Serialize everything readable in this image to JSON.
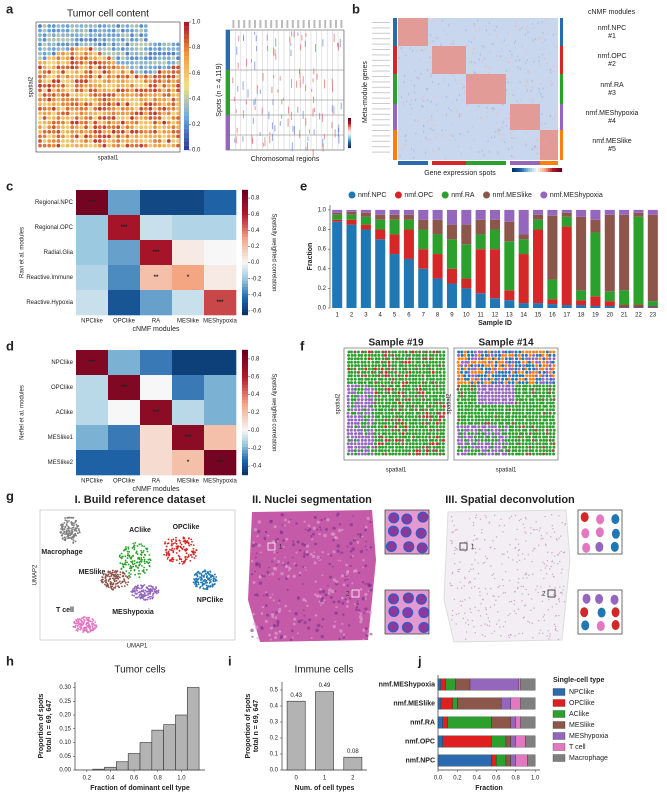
{
  "panel_labels": [
    "a",
    "b",
    "c",
    "d",
    "e",
    "f",
    "g",
    "h",
    "i",
    "j"
  ],
  "panel_a": {
    "title": "Tumor cell content",
    "xlabel": "spatial1",
    "ylabel": "spatial2",
    "colorbar_ticks": [
      {
        "value": 0,
        "label": "0.0"
      },
      0.2,
      0.4,
      0.6,
      0.8,
      {
        "value": 1,
        "label": "1.0"
      }
    ],
    "cnv_ylabel": "Spots (n = 4,119)",
    "cnv_xlabel": "Chromosomal regions"
  },
  "panel_b": {
    "ylabel": "Meta-module genes",
    "legend_title": "cNMF modules",
    "modules": [
      {
        "name": "nmf.NPC",
        "number": "#1"
      },
      {
        "name": "nmf.OPC",
        "number": "#2"
      },
      {
        "name": "nmf.RA",
        "number": "#3"
      },
      {
        "name": "nmf.MEShypoxia",
        "number": "#4"
      },
      {
        "name": "nmf.MESlike",
        "number": "#5"
      }
    ],
    "xlabel": "Gene expression spots"
  },
  "panel_f": {
    "titles": [
      "Sample #19",
      "Sample #14"
    ],
    "xlabel": "spatial1",
    "ylabel": "spatial2"
  },
  "panel_g": {
    "sections": [
      "I. Build reference dataset",
      "II. Nuclei segmentation",
      "III. Spatial deconvolution"
    ],
    "clusters": [
      "Macrophage",
      "MESlike",
      "AClike",
      "OPClike",
      "NPClike",
      "MEShypoxia",
      "T cell"
    ],
    "xlabel": "UMAP1",
    "ylabel": "UMAP2",
    "regions": [
      "1",
      "2"
    ]
  },
  "chart_data": [
    {
      "type": "heatmap",
      "colormap": "RdBu_r",
      "rows": [
        "Regional.NPC",
        "Regional.OPC",
        "Radial.Glia",
        "Reactive.Immune",
        "Reactive.Hypoxia"
      ],
      "columns": [
        "NPClike",
        "OPClike",
        "RA",
        "MESlike",
        "MEShypoxia"
      ],
      "values": [
        [
          0.85,
          -0.3,
          -0.55,
          -0.55,
          -0.45
        ],
        [
          -0.2,
          0.65,
          -0.1,
          -0.15,
          -0.15
        ],
        [
          -0.2,
          -0.3,
          0.65,
          0.05,
          0.0
        ],
        [
          -0.15,
          -0.35,
          0.2,
          0.3,
          0.05
        ],
        [
          -0.1,
          -0.5,
          -0.3,
          -0.1,
          0.5
        ]
      ],
      "significance": [
        [
          "***",
          null,
          null,
          null,
          null
        ],
        [
          null,
          "***",
          null,
          null,
          null
        ],
        [
          null,
          null,
          "***",
          null,
          null
        ],
        [
          null,
          null,
          "**",
          "*",
          null
        ],
        [
          null,
          null,
          null,
          null,
          "***"
        ]
      ],
      "xlabel": "cNMF modules",
      "ylabel": "Ravi et al. modules",
      "colorbar_label": "Spatially weighted correlation",
      "zlim": [
        -0.65,
        0.9
      ],
      "zticks": [
        -0.6,
        -0.4,
        -0.2,
        {
          "value": 0,
          "label": "0.0"
        },
        0.2,
        0.4,
        0.6,
        0.8
      ]
    },
    {
      "type": "heatmap",
      "colormap": "RdBu_r",
      "rows": [
        "NPClike",
        "OPClike",
        "AClike",
        "MESlike1",
        "MESlike2"
      ],
      "columns": [
        "NPClike",
        "OPClike",
        "RA",
        "MESlike",
        "MEShypoxia"
      ],
      "values": [
        [
          0.8,
          -0.2,
          -0.3,
          -0.45,
          -0.45
        ],
        [
          -0.1,
          0.8,
          0.0,
          -0.3,
          -0.2
        ],
        [
          -0.1,
          0.0,
          0.75,
          -0.1,
          -0.2
        ],
        [
          -0.2,
          -0.3,
          0.1,
          0.75,
          0.2
        ],
        [
          -0.35,
          -0.35,
          0.1,
          0.2,
          0.85
        ]
      ],
      "significance": [
        [
          "***",
          null,
          null,
          null,
          null
        ],
        [
          null,
          "***",
          null,
          null,
          null
        ],
        [
          null,
          null,
          "***",
          null,
          null
        ],
        [
          null,
          null,
          null,
          "***",
          null
        ],
        [
          null,
          null,
          null,
          "*",
          "***"
        ]
      ],
      "xlabel": "cNMF modules",
      "ylabel": "Neftel et al. modules",
      "colorbar_label": "Spatially weighted correlation",
      "zlim": [
        -0.5,
        0.9
      ],
      "zticks": [
        -0.4,
        -0.2,
        {
          "value": 0,
          "label": "0.0"
        },
        0.2,
        0.4,
        0.6,
        0.8
      ]
    },
    {
      "type": "stacked_bar",
      "categories": [
        "1",
        "2",
        "3",
        "4",
        "5",
        "6",
        "7",
        "8",
        "9",
        "10",
        "11",
        "12",
        "13",
        "14",
        "15",
        "16",
        "17",
        "18",
        "19",
        "20",
        "21",
        "22",
        "23"
      ],
      "series": [
        {
          "name": "nmf.NPC",
          "color": "#1f77b4",
          "values": [
            0.88,
            0.85,
            0.8,
            0.7,
            0.55,
            0.5,
            0.4,
            0.3,
            0.25,
            0.2,
            0.15,
            0.1,
            0.08,
            0.05,
            0.05,
            0.04,
            0.03,
            0.03,
            0.02,
            0.02,
            0.01,
            0.01,
            0.01
          ]
        },
        {
          "name": "nmf.OPC",
          "color": "#d62728",
          "values": [
            0.02,
            0.05,
            0.05,
            0.1,
            0.2,
            0.3,
            0.2,
            0.25,
            0.15,
            0.1,
            0.45,
            0.5,
            0.1,
            0.5,
            0.75,
            0.05,
            0.8,
            0.05,
            0.1,
            0.05,
            0.02,
            0.02,
            0.01
          ]
        },
        {
          "name": "nmf.RA",
          "color": "#2ca02c",
          "values": [
            0.05,
            0.05,
            0.08,
            0.1,
            0.15,
            0.1,
            0.2,
            0.2,
            0.3,
            0.35,
            0.15,
            0.2,
            0.5,
            0.15,
            0.1,
            0.2,
            0.1,
            0.1,
            0.65,
            0.1,
            0.15,
            0.9,
            0.05
          ]
        },
        {
          "name": "nmf.MESlike",
          "color": "#8c564b",
          "values": [
            0.02,
            0.03,
            0.04,
            0.05,
            0.05,
            0.05,
            0.1,
            0.15,
            0.15,
            0.2,
            0.15,
            0.1,
            0.2,
            0.05,
            0.05,
            0.65,
            0.04,
            0.75,
            0.13,
            0.78,
            0.77,
            0.04,
            0.88
          ]
        },
        {
          "name": "nmf.MEShypoxia",
          "color": "#9467bd",
          "values": [
            0.03,
            0.02,
            0.03,
            0.05,
            0.05,
            0.05,
            0.1,
            0.1,
            0.15,
            0.15,
            0.1,
            0.1,
            0.12,
            0.25,
            0.05,
            0.06,
            0.03,
            0.07,
            0.1,
            0.05,
            0.05,
            0.03,
            0.05
          ]
        }
      ],
      "xlabel": "Sample ID",
      "ylabel": "Fraction",
      "ylim": [
        0,
        1.05
      ],
      "yticks": [
        {
          "value": 0,
          "label": "0.0"
        },
        0.2,
        0.4,
        0.6,
        0.8,
        {
          "value": 1,
          "label": "1.0"
        }
      ]
    },
    {
      "type": "histogram",
      "title": "Tumor cells",
      "bins": [
        0.25,
        0.35,
        0.45,
        0.55,
        0.65,
        0.75,
        0.85,
        0.95,
        1.05,
        1.15
      ],
      "values": [
        0.003,
        0.01,
        0.03,
        0.06,
        0.1,
        0.145,
        0.165,
        0.2,
        0.3
      ],
      "color": "#b3b3b3",
      "xlabel": "Fraction of dominant cell type",
      "ylabel": [
        "Proportion of spots",
        "total n = 69, 647"
      ],
      "xlim": [
        0.1,
        1.2
      ],
      "xticks": [
        0.2,
        0.4,
        0.6,
        0.8,
        {
          "value": 1,
          "label": "1.0"
        }
      ],
      "ylim": [
        0,
        0.32
      ],
      "yticks": [
        {
          "value": 0,
          "label": "0.00"
        },
        0.05,
        {
          "value": 0.1,
          "label": "0.10"
        },
        0.15,
        {
          "value": 0.2,
          "label": "0.20"
        },
        0.25,
        {
          "value": 0.3,
          "label": "0.30"
        }
      ]
    },
    {
      "type": "bar",
      "title": "Immune cells",
      "categories": [
        "0",
        "1",
        "2"
      ],
      "values": [
        0.43,
        0.49,
        0.08
      ],
      "color": "#b3b3b3",
      "xlabel": "Num. of cell types",
      "ylabel": [
        "Proportion of spots",
        "total n = 69, 647"
      ],
      "ylim": [
        0,
        0.55
      ],
      "yticks": [
        {
          "value": 0,
          "label": "0.0"
        },
        0.1,
        0.2,
        0.3,
        0.4,
        0.5
      ]
    },
    {
      "type": "stacked_barh",
      "categories": [
        "nmf.MEShypoxia",
        "nmf.MESlike",
        "nmf.RA",
        "nmf.OPC",
        "nmf.NPC"
      ],
      "series": [
        {
          "name": "NPClike",
          "color": "#2a6bb0",
          "values": [
            0.03,
            0.03,
            0.05,
            0.05,
            0.55
          ]
        },
        {
          "name": "OPClike",
          "color": "#e02020",
          "values": [
            0.05,
            0.12,
            0.05,
            0.5,
            0.05
          ]
        },
        {
          "name": "AClike",
          "color": "#2ca02c",
          "values": [
            0.1,
            0.05,
            0.45,
            0.15,
            0.1
          ]
        },
        {
          "name": "MESlike",
          "color": "#8c564b",
          "values": [
            0.15,
            0.45,
            0.2,
            0.05,
            0.05
          ]
        },
        {
          "name": "MEShypoxia",
          "color": "#9467bd",
          "values": [
            0.5,
            0.1,
            0.05,
            0.05,
            0.05
          ]
        },
        {
          "name": "T cell",
          "color": "#e377c2",
          "values": [
            0.02,
            0.1,
            0.05,
            0.1,
            0.12
          ]
        },
        {
          "name": "Macrophage",
          "color": "#7f7f7f",
          "values": [
            0.15,
            0.15,
            0.15,
            0.1,
            0.08
          ]
        }
      ],
      "legend_title": "Single-cell type",
      "xlabel": "Fraction",
      "xlim": [
        0,
        1.05
      ],
      "xticks": [
        {
          "value": 0,
          "label": "0.0"
        },
        0.2,
        0.4,
        0.6,
        0.8,
        {
          "value": 1,
          "label": "1.0"
        }
      ]
    }
  ]
}
